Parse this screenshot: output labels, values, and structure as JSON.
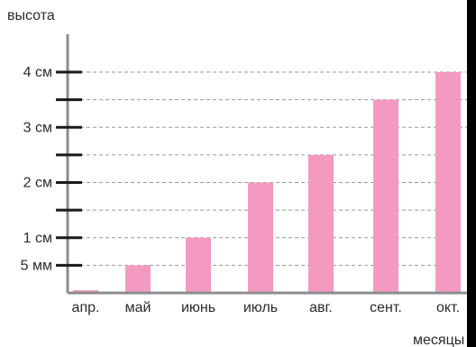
{
  "colors": {
    "bar": "#F49AC1",
    "axis": "#8c8c8c",
    "tick": "#1a1a1a",
    "gridline": "#9a9a9a",
    "text": "#2b2b2b"
  },
  "chart_data": {
    "type": "bar",
    "ylabel": "высота",
    "xlabel": "месяцы",
    "categories": [
      "апр.",
      "май",
      "июнь",
      "июль",
      "авг.",
      "сент.",
      "окт."
    ],
    "values": [
      0.05,
      0.5,
      1,
      2,
      2.5,
      3.5,
      4
    ],
    "unit": "см",
    "ylim": [
      0,
      4
    ],
    "minor_ticks": [
      0.5,
      1,
      1.5,
      2,
      2.5,
      3,
      3.5,
      4
    ],
    "y_tick_labels": [
      {
        "value": 0.5,
        "label": "5 мм"
      },
      {
        "value": 1,
        "label": "1 см"
      },
      {
        "value": 2,
        "label": "2 см"
      },
      {
        "value": 3,
        "label": "3 см"
      },
      {
        "value": 4,
        "label": "4 см"
      }
    ],
    "grid": "dashed guide lines from axis to bar tops",
    "legend": "none"
  }
}
